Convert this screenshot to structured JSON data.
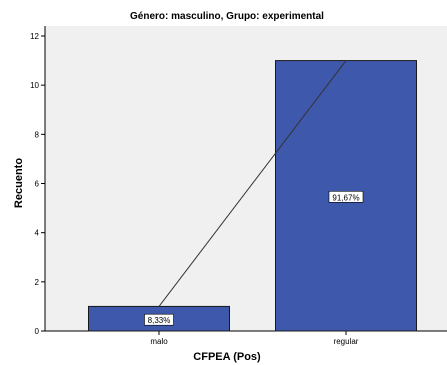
{
  "chart_data": {
    "type": "bar",
    "title": "Género: masculino, Grupo: experimental",
    "xlabel": "CFPEA (Pos)",
    "ylabel": "Recuento",
    "categories": [
      "malo",
      "regular"
    ],
    "values": [
      1,
      11
    ],
    "data_labels": [
      "8,33%",
      "91,67%"
    ],
    "ylim": [
      0,
      12
    ],
    "yticks": [
      0,
      2,
      4,
      6,
      8,
      10,
      12
    ],
    "grid": false,
    "legend": "none",
    "overlay_line": true,
    "colors": {
      "plot_background": "#f0f0f0",
      "bar_fill": "#3e58ac",
      "bar_stroke": "#1a1a1a",
      "line": "#333333"
    }
  }
}
